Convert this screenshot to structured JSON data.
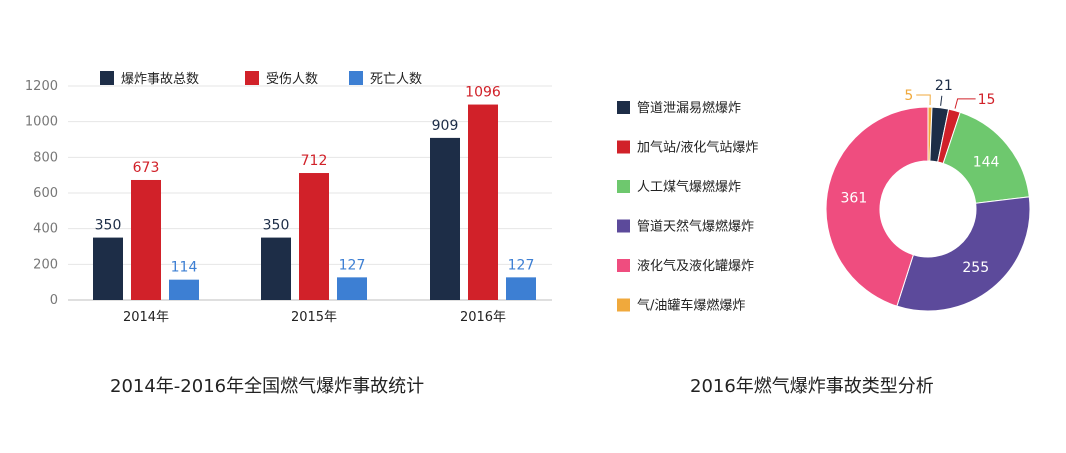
{
  "chart_data": [
    {
      "type": "bar",
      "title": "2014年-2016年全国燃气爆炸事故统计",
      "categories": [
        "2014年",
        "2015年",
        "2016年"
      ],
      "series": [
        {
          "name": "爆炸事故总数",
          "color": "#1d2d47",
          "label_color": "#1d2d47",
          "values": [
            350,
            350,
            909
          ]
        },
        {
          "name": "受伤人数",
          "color": "#d12129",
          "label_color": "#d12129",
          "values": [
            673,
            712,
            1096
          ]
        },
        {
          "name": "死亡人数",
          "color": "#3d7fd3",
          "label_color": "#3d7fd3",
          "values": [
            114,
            127,
            127
          ]
        }
      ],
      "yticks": [
        "0",
        "200",
        "400",
        "600",
        "800",
        "1000",
        "1200"
      ],
      "ylim": [
        0,
        1200
      ],
      "grid": true,
      "legend_position": "top"
    },
    {
      "type": "pie",
      "subtype": "donut",
      "title": "2016年燃气爆炸事故类型分析",
      "labels": [
        "气/油罐车爆燃爆炸",
        "管道泄漏易燃爆炸",
        "加气站/液化气站爆炸",
        "人工煤气爆燃爆炸",
        "管道天然气爆燃爆炸",
        "液化气及液化罐爆炸"
      ],
      "values": [
        5,
        21,
        15,
        144,
        255,
        361
      ],
      "value_labels": [
        "5",
        "21",
        "15",
        "144",
        "255",
        "361"
      ],
      "colors": [
        "#f0a93c",
        "#1d2d47",
        "#d12129",
        "#6ec86e",
        "#5c4a9b",
        "#ef4d7f"
      ],
      "label_colors": [
        "#f0a93c",
        "#1d2d47",
        "#d12129",
        "#ffffff",
        "#ffffff",
        "#ffffff"
      ],
      "legend_order": [
        1,
        2,
        3,
        4,
        5,
        0
      ],
      "legend_position": "left"
    }
  ]
}
